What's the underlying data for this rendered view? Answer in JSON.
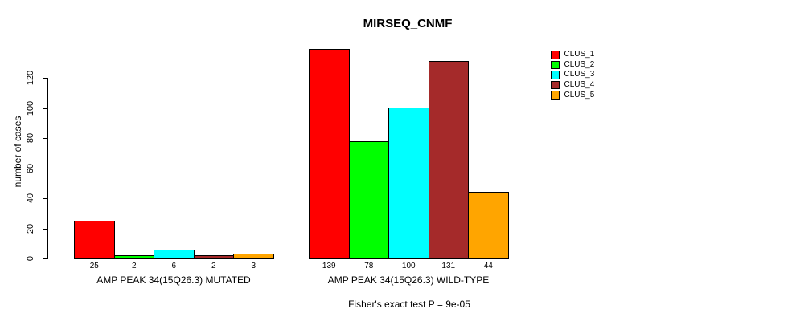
{
  "chart_data": {
    "type": "bar",
    "title": "MIRSEQ_CNMF",
    "ylabel": "number of cases",
    "xlabel": "",
    "categories": [
      "AMP PEAK 34(15Q26.3) MUTATED",
      "AMP PEAK 34(15Q26.3) WILD-TYPE"
    ],
    "series": [
      {
        "name": "CLUS_1",
        "color": "#ff0000",
        "values": [
          25,
          139
        ]
      },
      {
        "name": "CLUS_2",
        "color": "#00ff00",
        "values": [
          2,
          78
        ]
      },
      {
        "name": "CLUS_3",
        "color": "#00ffff",
        "values": [
          6,
          100
        ]
      },
      {
        "name": "CLUS_4",
        "color": "#a52a2a",
        "values": [
          2,
          131
        ]
      },
      {
        "name": "CLUS_5",
        "color": "#ffa500",
        "values": [
          3,
          44
        ]
      }
    ],
    "yticks": [
      0,
      20,
      40,
      60,
      80,
      100,
      120
    ],
    "ylim": [
      0,
      139
    ],
    "grid": false,
    "legend_position": "right",
    "bar_value_labels": true,
    "annotation": "Fisher's exact test P = 9e-05"
  },
  "colors": {
    "background": "#ffffff",
    "axis": "#000000",
    "text": "#000000"
  }
}
